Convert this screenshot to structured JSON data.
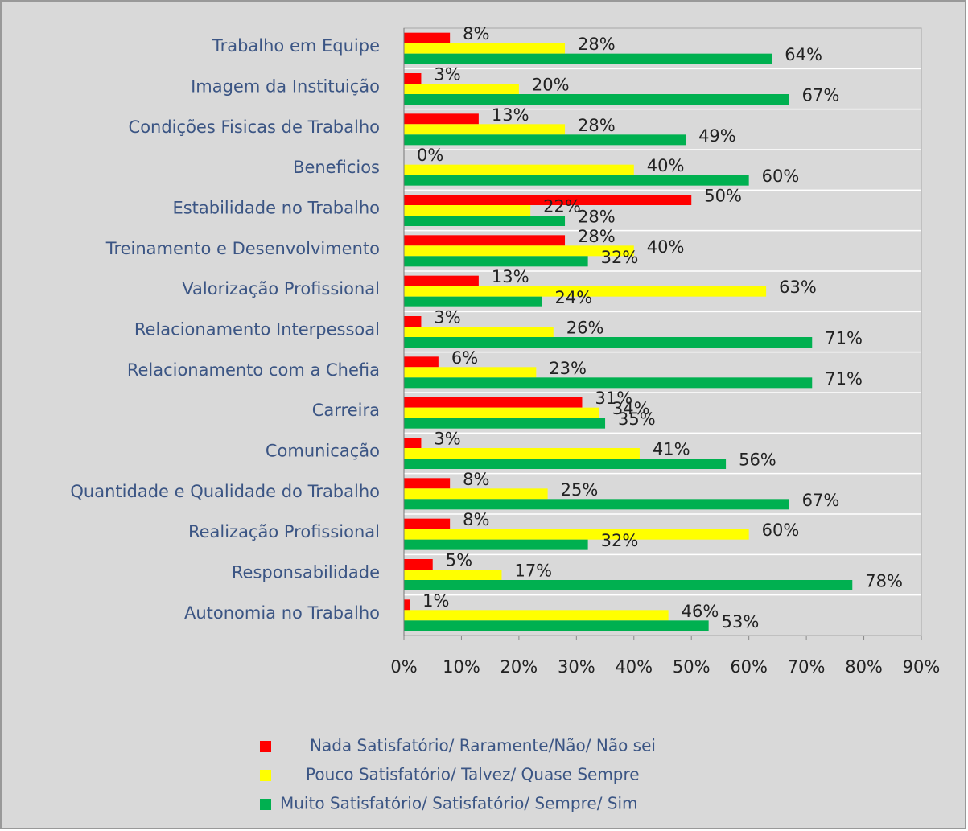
{
  "chart_data": {
    "type": "hbar",
    "categories": [
      "Trabalho em Equipe",
      "Imagem da Instituição",
      "Condições Fisicas de Trabalho",
      "Beneficios",
      "Estabilidade no Trabalho",
      "Treinamento e Desenvolvimento",
      "Valorização Profissional",
      "Relacionamento Interpessoal",
      "Relacionamento com a Chefia",
      "Carreira",
      "Comunicação ",
      "Quantidade e Qualidade do Trabalho",
      "Realização Profissional",
      "Responsabilidade",
      "Autonomia no Trabalho"
    ],
    "series": [
      {
        "name": "Nada Satisfatório/ Raramente/Não/ Não sei",
        "color": "#ff0000",
        "values": [
          8,
          3,
          13,
          0,
          50,
          28,
          13,
          3,
          6,
          31,
          3,
          8,
          8,
          5,
          1
        ],
        "value_labels": [
          "8%",
          "3%",
          "13%",
          "0%",
          "50%",
          "28%",
          "13%",
          "3%",
          "6%",
          "31%",
          "3%",
          "8%",
          "8%",
          "5%",
          "1%"
        ]
      },
      {
        "name": "Pouco Satisfatório/ Talvez/ Quase Sempre",
        "color": "#ffff00",
        "values": [
          28,
          20,
          28,
          40,
          22,
          40,
          63,
          26,
          23,
          34,
          41,
          25,
          60,
          17,
          46
        ],
        "value_labels": [
          "28%",
          "20%",
          "28%",
          "40%",
          "22%",
          "40%",
          "63%",
          "26%",
          "23%",
          "34%",
          "41%",
          "25%",
          "60%",
          "17%",
          "46%"
        ]
      },
      {
        "name": "Muito Satisfatório/ Satisfatório/ Sempre/  Sim",
        "color": "#00b050",
        "values": [
          64,
          67,
          49,
          60,
          28,
          32,
          24,
          71,
          71,
          35,
          56,
          67,
          32,
          78,
          53
        ],
        "value_labels": [
          "64%",
          "67%",
          "49%",
          "60%",
          "28%",
          "32%",
          "24%",
          "71%",
          "71%",
          "35%",
          "56%",
          "67%",
          "32%",
          "78%",
          "53%"
        ]
      }
    ],
    "xlim": [
      0,
      90
    ],
    "xticks": [
      {
        "value": 0,
        "label": "0%"
      },
      {
        "value": 10,
        "label": "10%"
      },
      {
        "value": 20,
        "label": "20%"
      },
      {
        "value": 30,
        "label": "30%"
      },
      {
        "value": 40,
        "label": "40%"
      },
      {
        "value": 50,
        "label": "50%"
      },
      {
        "value": 60,
        "label": "60%"
      },
      {
        "value": 70,
        "label": "70%"
      },
      {
        "value": 80,
        "label": "80%"
      },
      {
        "value": 90,
        "label": "90%"
      }
    ],
    "legend": "bottom"
  }
}
